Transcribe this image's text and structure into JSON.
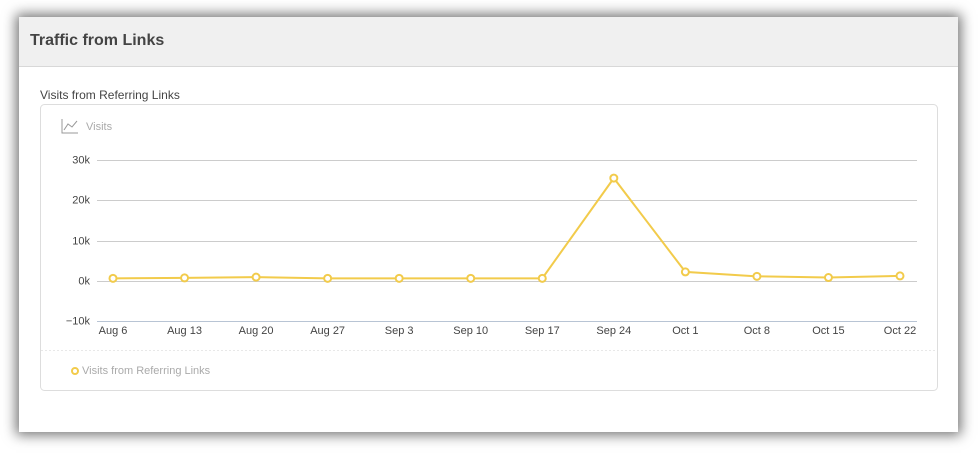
{
  "header": {
    "title": "Traffic from Links"
  },
  "chart_data": {
    "type": "line",
    "title": "Visits from Referring Links",
    "y_label": "Visits",
    "categories": [
      "Aug 6",
      "Aug 13",
      "Aug 20",
      "Aug 27",
      "Sep 3",
      "Sep 10",
      "Sep 17",
      "Sep 24",
      "Oct 1",
      "Oct 8",
      "Oct 15",
      "Oct 22"
    ],
    "series": [
      {
        "name": "Visits from Referring Links",
        "color": "#f2cb4b",
        "values": [
          600,
          700,
          900,
          600,
          600,
          600,
          600,
          25500,
          2200,
          1100,
          800,
          1200
        ]
      }
    ],
    "ylim": [
      -10000,
      30000
    ],
    "yticks": [
      {
        "value": -10000,
        "label": "−10k"
      },
      {
        "value": 0,
        "label": "0k"
      },
      {
        "value": 10000,
        "label": "10k"
      },
      {
        "value": 20000,
        "label": "20k"
      },
      {
        "value": 30000,
        "label": "30k"
      }
    ],
    "grid": true,
    "legend": "bottom-left"
  }
}
